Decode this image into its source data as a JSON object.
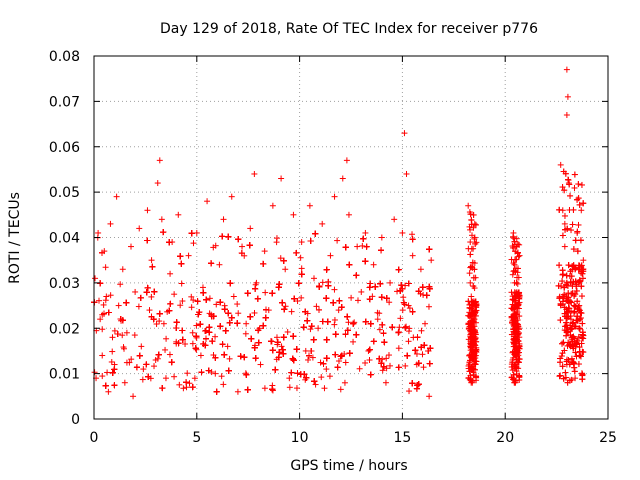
{
  "chart_data": {
    "type": "scatter",
    "title": "Day 129 of 2018, Rate Of TEC Index for receiver p776",
    "xlabel": "GPS time / hours",
    "ylabel": "ROTI / TECUs",
    "xlim": [
      0,
      25
    ],
    "ylim": [
      0,
      0.08
    ],
    "xticks": [
      0,
      5,
      10,
      15,
      20,
      25
    ],
    "xtick_labels": [
      "0",
      "5",
      "10",
      "15",
      "20",
      "25"
    ],
    "yticks": [
      0,
      0.01,
      0.02,
      0.03,
      0.04,
      0.05,
      0.06,
      0.07,
      0.08
    ],
    "ytick_labels": [
      "0",
      "0.01",
      "0.02",
      "0.03",
      "0.04",
      "0.05",
      "0.06",
      "0.07",
      "0.08"
    ],
    "grid": true,
    "marker": "+",
    "color": "#ff0000",
    "series": [
      {
        "name": "ROTI",
        "points": [
          [
            0.05,
            0.031
          ],
          [
            0.1,
            0.009
          ],
          [
            0.2,
            0.041
          ],
          [
            0.3,
            0.022
          ],
          [
            0.4,
            0.014
          ],
          [
            0.5,
            0.037
          ],
          [
            0.6,
            0.027
          ],
          [
            0.7,
            0.006
          ],
          [
            0.8,
            0.043
          ],
          [
            0.9,
            0.018
          ],
          [
            1.0,
            0.012
          ],
          [
            1.1,
            0.049
          ],
          [
            1.2,
            0.025
          ],
          [
            1.4,
            0.033
          ],
          [
            1.5,
            0.008
          ],
          [
            1.6,
            0.019
          ],
          [
            1.8,
            0.038
          ],
          [
            1.9,
            0.005
          ],
          [
            2.0,
            0.028
          ],
          [
            2.2,
            0.042
          ],
          [
            2.3,
            0.016
          ],
          [
            2.4,
            0.011
          ],
          [
            2.6,
            0.046
          ],
          [
            2.7,
            0.024
          ],
          [
            2.8,
            0.035
          ],
          [
            3.0,
            0.013
          ],
          [
            3.1,
            0.052
          ],
          [
            3.2,
            0.057
          ],
          [
            3.3,
            0.044
          ],
          [
            3.4,
            0.021
          ],
          [
            3.5,
            0.009
          ],
          [
            3.7,
            0.032
          ],
          [
            3.8,
            0.039
          ],
          [
            4.0,
            0.017
          ],
          [
            4.1,
            0.045
          ],
          [
            4.3,
            0.026
          ],
          [
            4.5,
            0.007
          ],
          [
            4.6,
            0.036
          ],
          [
            4.8,
            0.019
          ],
          [
            5.0,
            0.041
          ],
          [
            5.2,
            0.014
          ],
          [
            5.3,
            0.029
          ],
          [
            5.5,
            0.048
          ],
          [
            5.7,
            0.023
          ],
          [
            5.9,
            0.01
          ],
          [
            6.1,
            0.034
          ],
          [
            6.3,
            0.044
          ],
          [
            6.5,
            0.016
          ],
          [
            6.7,
            0.049
          ],
          [
            6.8,
            0.027
          ],
          [
            7.0,
            0.006
          ],
          [
            7.2,
            0.038
          ],
          [
            7.4,
            0.021
          ],
          [
            7.6,
            0.042
          ],
          [
            7.8,
            0.054
          ],
          [
            7.9,
            0.03
          ],
          [
            8.1,
            0.012
          ],
          [
            8.3,
            0.037
          ],
          [
            8.5,
            0.024
          ],
          [
            8.7,
            0.047
          ],
          [
            8.9,
            0.018
          ],
          [
            9.1,
            0.053
          ],
          [
            9.3,
            0.033
          ],
          [
            9.5,
            0.009
          ],
          [
            9.7,
            0.045
          ],
          [
            9.9,
            0.026
          ],
          [
            10.1,
            0.039
          ],
          [
            10.3,
            0.015
          ],
          [
            10.5,
            0.047
          ],
          [
            10.7,
            0.031
          ],
          [
            10.9,
            0.02
          ],
          [
            11.1,
            0.043
          ],
          [
            11.3,
            0.011
          ],
          [
            11.5,
            0.036
          ],
          [
            11.7,
            0.049
          ],
          [
            11.9,
            0.024
          ],
          [
            12.1,
            0.053
          ],
          [
            12.3,
            0.057
          ],
          [
            12.4,
            0.045
          ],
          [
            12.6,
            0.017
          ],
          [
            12.8,
            0.038
          ],
          [
            13.0,
            0.028
          ],
          [
            13.2,
            0.041
          ],
          [
            13.4,
            0.013
          ],
          [
            13.6,
            0.034
          ],
          [
            13.8,
            0.022
          ],
          [
            14.0,
            0.04
          ],
          [
            14.2,
            0.008
          ],
          [
            14.4,
            0.03
          ],
          [
            14.6,
            0.044
          ],
          [
            14.8,
            0.019
          ],
          [
            15.0,
            0.041
          ],
          [
            15.1,
            0.063
          ],
          [
            15.2,
            0.054
          ],
          [
            15.3,
            0.025
          ],
          [
            15.5,
            0.036
          ],
          [
            15.7,
            0.012
          ],
          [
            15.9,
            0.033
          ],
          [
            16.1,
            0.021
          ],
          [
            16.3,
            0.005
          ],
          [
            16.4,
            0.035
          ],
          [
            18.2,
            0.047
          ],
          [
            18.3,
            0.039
          ],
          [
            18.35,
            0.027
          ],
          [
            18.4,
            0.018
          ],
          [
            18.45,
            0.011
          ],
          [
            18.5,
            0.022
          ],
          [
            18.3,
            0.03
          ],
          [
            18.4,
            0.008
          ],
          [
            20.4,
            0.041
          ],
          [
            20.45,
            0.03
          ],
          [
            20.5,
            0.021
          ],
          [
            20.55,
            0.013
          ],
          [
            20.6,
            0.025
          ],
          [
            20.5,
            0.008
          ],
          [
            20.45,
            0.034
          ],
          [
            22.7,
            0.056
          ],
          [
            22.8,
            0.046
          ],
          [
            22.9,
            0.038
          ],
          [
            23.0,
            0.077
          ],
          [
            23.05,
            0.071
          ],
          [
            23.0,
            0.067
          ],
          [
            23.1,
            0.052
          ],
          [
            23.2,
            0.03
          ],
          [
            23.3,
            0.018
          ],
          [
            23.4,
            0.009
          ],
          [
            23.5,
            0.041
          ],
          [
            23.6,
            0.025
          ],
          [
            23.7,
            0.046
          ],
          [
            23.8,
            0.035
          ],
          [
            23.6,
            0.014
          ],
          [
            23.4,
            0.033
          ],
          [
            23.2,
            0.022
          ],
          [
            23.0,
            0.012
          ],
          [
            22.8,
            0.027
          ],
          [
            22.9,
            0.043
          ]
        ]
      }
    ],
    "density": [
      {
        "x0": 0.0,
        "x1": 16.4,
        "lo": 0.006,
        "hi": 0.03,
        "peak": 0.042
      },
      {
        "x0": 18.2,
        "x1": 18.6,
        "lo": 0.008,
        "hi": 0.026,
        "peak": 0.047
      },
      {
        "x0": 20.3,
        "x1": 20.7,
        "lo": 0.008,
        "hi": 0.028,
        "peak": 0.041
      },
      {
        "x0": 22.6,
        "x1": 23.8,
        "lo": 0.008,
        "hi": 0.034,
        "peak": 0.056
      }
    ]
  }
}
